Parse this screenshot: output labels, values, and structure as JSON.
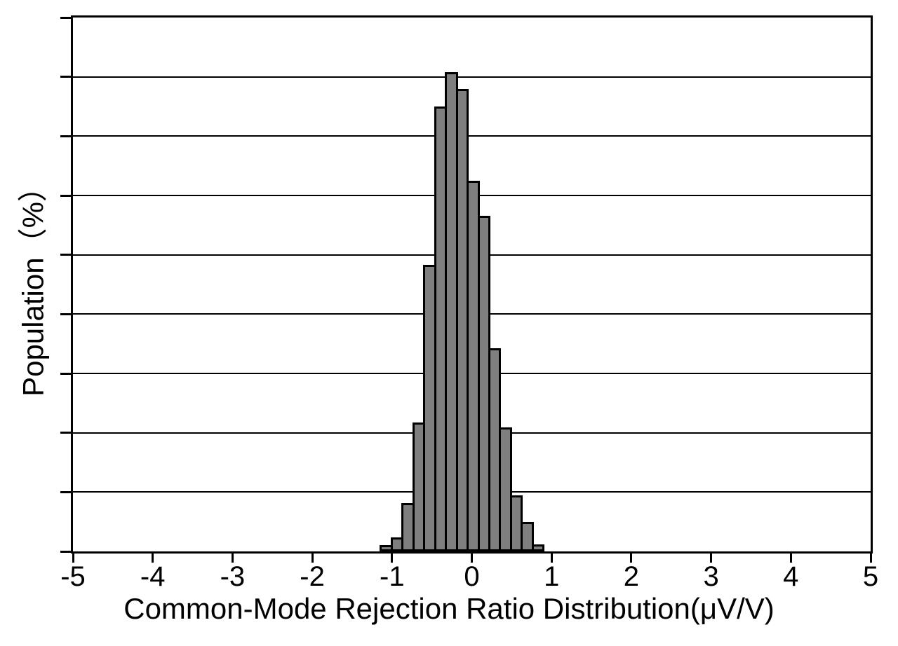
{
  "figure": {
    "background": "#ffffff",
    "text_color": "#000000"
  },
  "chart_data": {
    "type": "bar",
    "subtype": "histogram",
    "title": "",
    "xlabel": "Common-Mode Rejection Ratio Distribution(μV/V)",
    "ylabel": "Population（%）",
    "xlim": [
      -5,
      5
    ],
    "x_ticks": [
      -5,
      -4,
      -3,
      -2,
      -1,
      0,
      1,
      2,
      3,
      4,
      5
    ],
    "x_tick_labels": [
      "-5",
      "-4",
      "-3",
      "-2",
      "-1",
      "0",
      "1",
      "2",
      "3",
      "4",
      "5"
    ],
    "y_axis": {
      "numeric_labels_shown": false,
      "y_tick_labels": [],
      "divisions": 9,
      "gridlines": true,
      "estimated_percent_per_division": 2
    },
    "legend": "none",
    "bin_edges": [
      -1.14,
      -1.004,
      -0.868,
      -0.732,
      -0.596,
      -0.46,
      -0.324,
      -0.188,
      -0.052,
      0.084,
      0.22,
      0.356,
      0.492,
      0.628,
      0.764,
      0.9
    ],
    "values_in_grid_divisions": [
      0.11,
      0.24,
      0.81,
      2.17,
      4.83,
      7.5,
      8.08,
      7.79,
      6.25,
      5.66,
      3.42,
      2.09,
      0.94,
      0.5,
      0.12
    ],
    "values_percent_estimated": [
      0.2,
      0.5,
      1.6,
      4.3,
      9.6,
      14.9,
      16.0,
      15.4,
      12.4,
      11.2,
      6.8,
      4.1,
      1.9,
      1.0,
      0.2
    ],
    "peak_bin_center": -0.26,
    "bar_fill": "#7f7f7f",
    "bar_border": "#000000",
    "axis_color": "#000000",
    "gridline_color": "#000000"
  }
}
